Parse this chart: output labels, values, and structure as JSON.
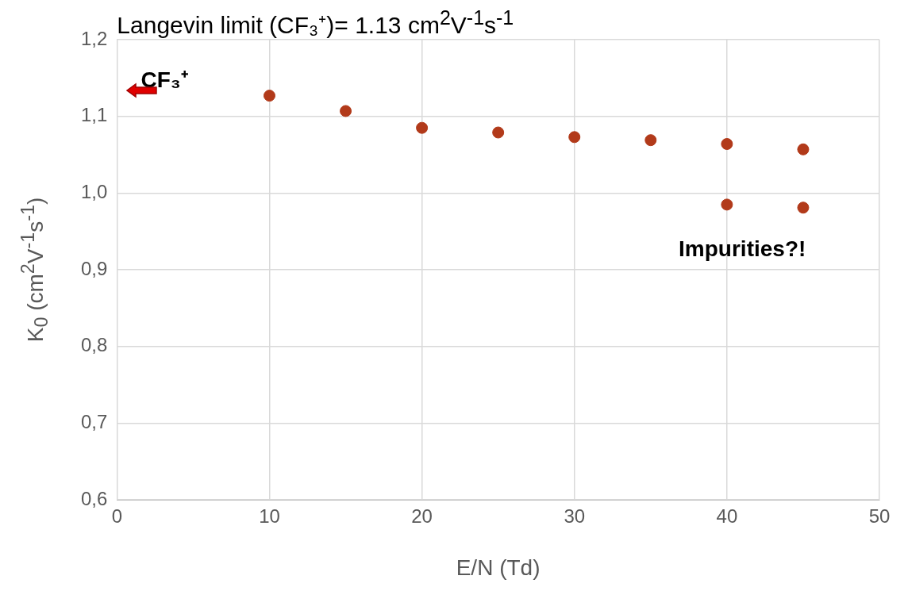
{
  "chart_data": {
    "type": "scatter",
    "title": "Langevin limit (CF₃⁺)= 1.13 cm$^{2}$V$^{-1}$s$^{-1}$",
    "xlabel": "E/N (Td)",
    "ylabel": "K$_{0}$ (cm$^{2}$V$^{-1}$s$^{-1}$)",
    "series": [
      {
        "color": "#b23a1a",
        "x": [
          10,
          15,
          20,
          25,
          30,
          35,
          40,
          45,
          40,
          45
        ],
        "values": [
          1.127,
          1.107,
          1.085,
          1.079,
          1.073,
          1.069,
          1.064,
          1.057,
          0.985,
          0.981
        ]
      }
    ],
    "xlim": [
      0,
      50
    ],
    "xticks": [
      0,
      10,
      20,
      30,
      40,
      50
    ],
    "ylim": [
      0.6,
      1.2
    ],
    "yticks": [
      {
        "value": 0.6,
        "label": "0,6"
      },
      {
        "value": 0.7,
        "label": "0,7"
      },
      {
        "value": 0.8,
        "label": "0,8"
      },
      {
        "value": 0.9,
        "label": "0,9"
      },
      {
        "value": 1.0,
        "label": "1,0"
      },
      {
        "value": 1.1,
        "label": "1,1"
      },
      {
        "value": 1.2,
        "label": "1,2"
      }
    ],
    "grid": true,
    "marker": "circle",
    "annotations": [
      "CF₃⁺",
      "Impurities?!"
    ]
  }
}
